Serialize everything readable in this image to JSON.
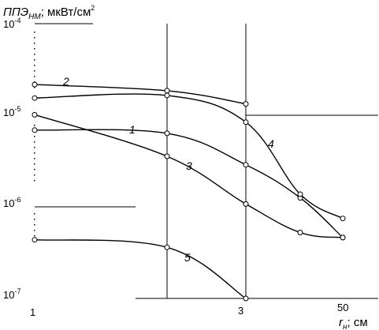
{
  "chart_data": {
    "type": "line",
    "ylabel": "ППЭ",
    "ylabel_sub": "НМ",
    "ylabel_unit": "; мкВт/см",
    "ylabel_sup": "2",
    "xlabel": "r",
    "xlabel_sub": "н",
    "xlabel_unit": "; см",
    "x_ticks": [
      "1",
      "3",
      "50"
    ],
    "y_ticks": [
      "10",
      "10",
      "10",
      "10"
    ],
    "y_tick_exponents": [
      "-4",
      "-5",
      "-6",
      "-7"
    ],
    "xlim": [
      1,
      50
    ],
    "ylim": [
      7e-08,
      0.0001
    ],
    "yscale": "log",
    "grid": false,
    "series": [
      {
        "name": "1",
        "x": [
          1,
          2,
          3,
          4,
          5
        ],
        "y": [
          6e-06,
          5.5e-06,
          2.4e-06,
          1e-06,
          3.5e-07
        ]
      },
      {
        "name": "2",
        "x": [
          1,
          2,
          3
        ],
        "y": [
          2e-05,
          1.7e-05,
          1.2e-05
        ]
      },
      {
        "name": "3",
        "x": [
          1,
          2,
          3,
          4,
          5
        ],
        "y": [
          9e-06,
          3e-06,
          8.5e-07,
          4e-07,
          3.5e-07
        ]
      },
      {
        "name": "4",
        "x": [
          1,
          2,
          3,
          4,
          5
        ],
        "y": [
          1.4e-05,
          1.5e-05,
          7.4e-06,
          1.1e-06,
          5.8e-07
        ]
      },
      {
        "name": "5",
        "x": [
          1,
          2,
          3
        ],
        "y": [
          3.3e-07,
          2.7e-07,
          7e-08
        ]
      }
    ]
  }
}
